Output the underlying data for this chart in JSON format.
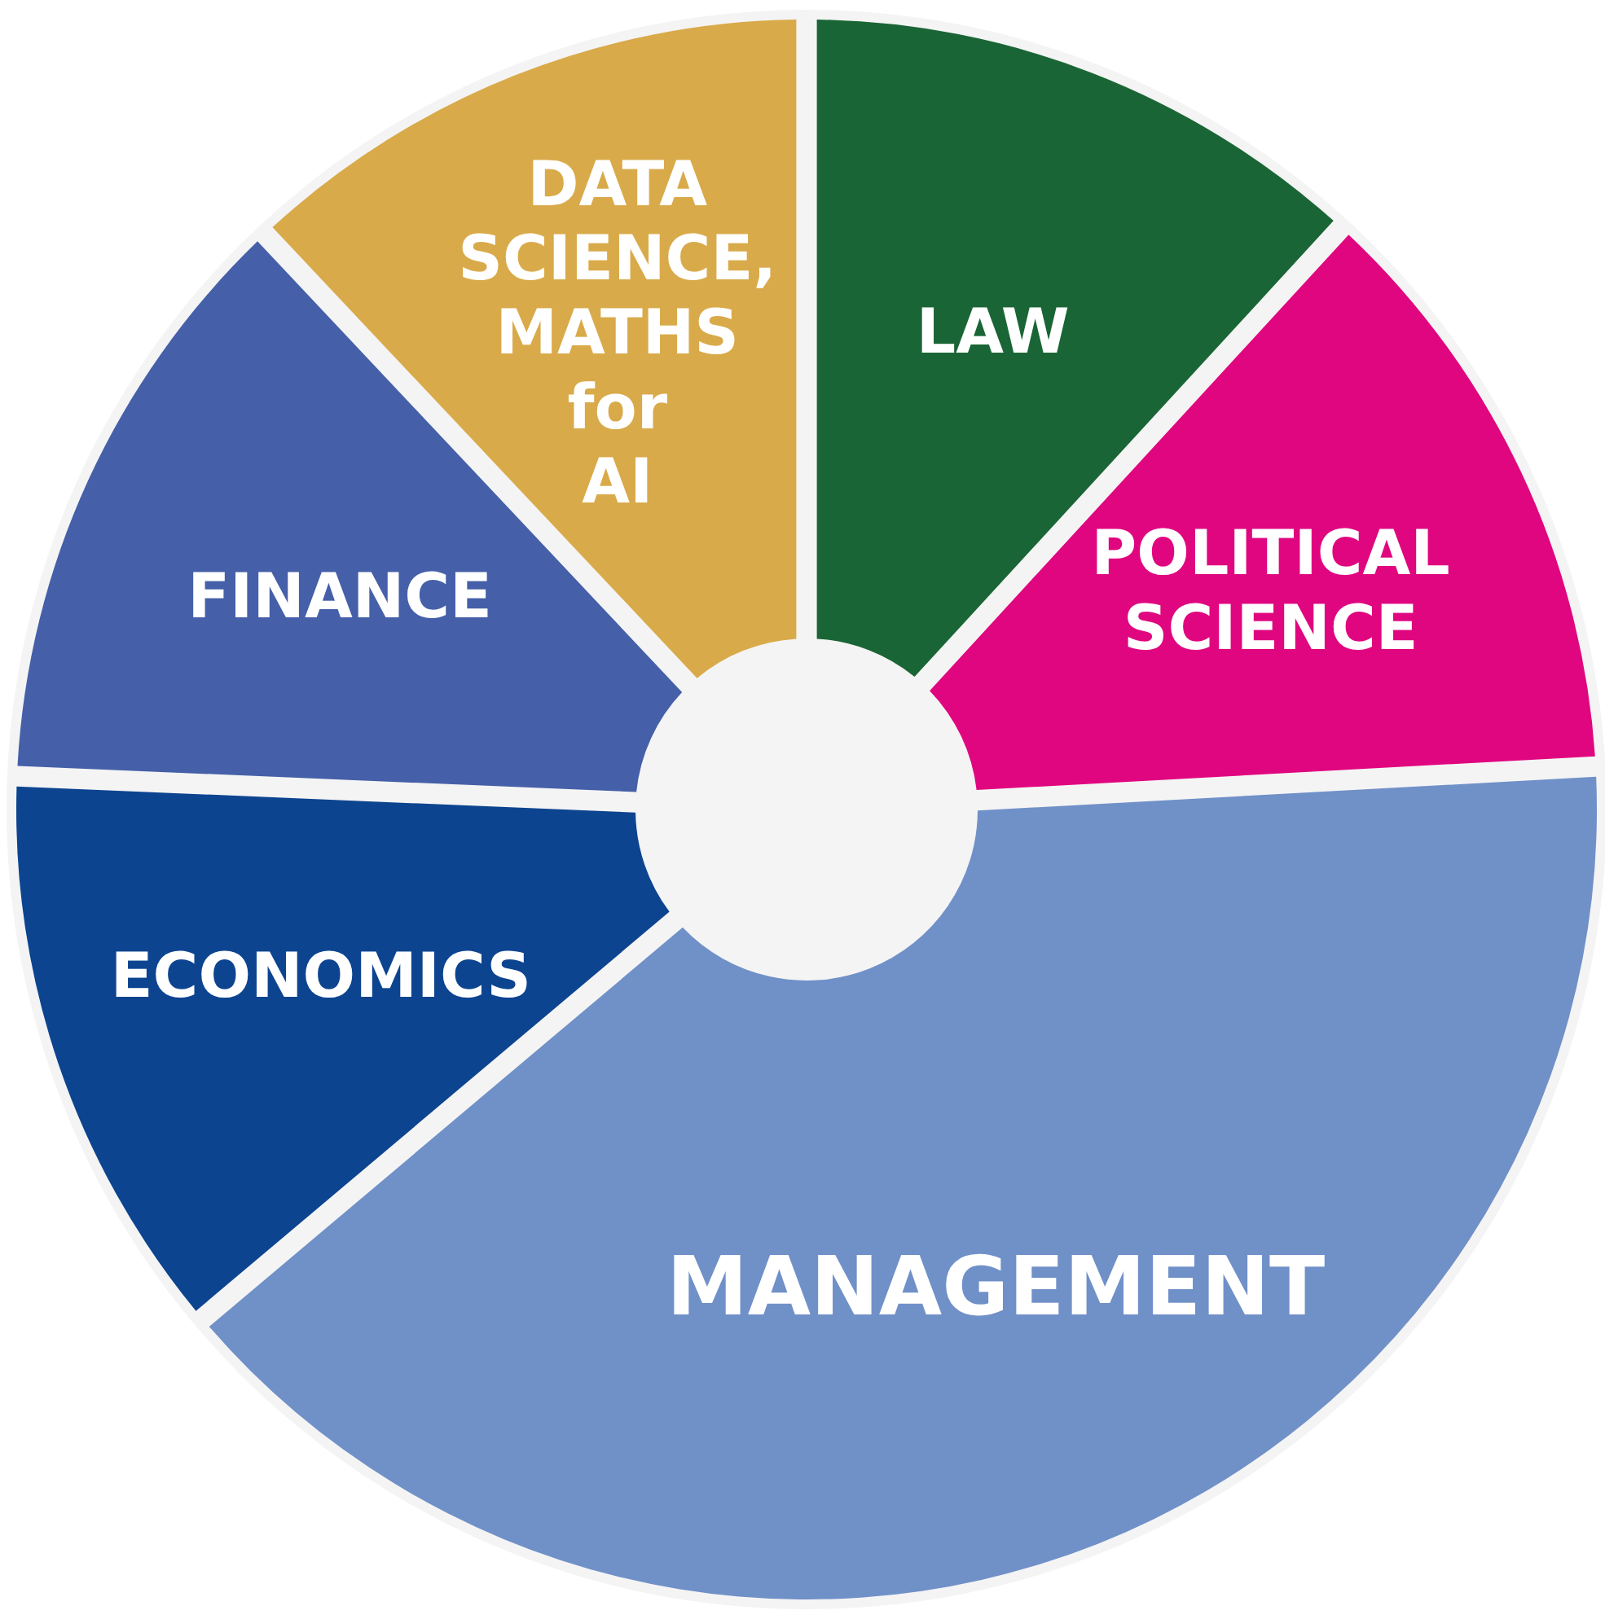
{
  "chart_data": {
    "type": "donut",
    "categories": [
      "LAW",
      "POLITICAL SCIENCE",
      "MANAGEMENT",
      "ECONOMICS",
      "FINANCE",
      "DATA SCIENCE, MATHS for AI"
    ],
    "values": [
      11.7,
      12.2,
      40.3,
      11.7,
      12.2,
      11.9
    ],
    "colors": [
      "#1a6535",
      "#e0067f",
      "#7090c8",
      "#0d4490",
      "#4560a8",
      "#d9aa4a"
    ]
  }
}
